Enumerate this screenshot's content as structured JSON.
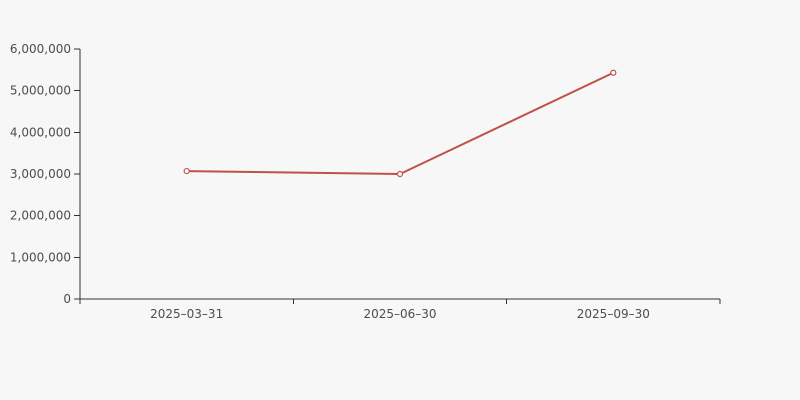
{
  "chart": {
    "background_color": "#f7f7f7",
    "axis_color": "#333333",
    "tick_label_color": "#4d4d4d",
    "series_color": "#bf504a",
    "marker_fill": "#ffffff"
  },
  "chart_data": {
    "type": "line",
    "title": "",
    "xlabel": "",
    "ylabel": "",
    "categories": [
      "2025–03–31",
      "2025–06–30",
      "2025–09–30"
    ],
    "series": [
      {
        "values": [
          3070000,
          3000000,
          5430000
        ]
      }
    ],
    "ylim": [
      0,
      6000000
    ],
    "y_tick_interval": 1000000,
    "y_tick_labels": [
      "0",
      "1,000,000",
      "2,000,000",
      "3,000,000",
      "4,000,000",
      "5,000,000",
      "6,000,000"
    ],
    "grid": false,
    "legend_position": "none",
    "marker": "open-circle"
  }
}
